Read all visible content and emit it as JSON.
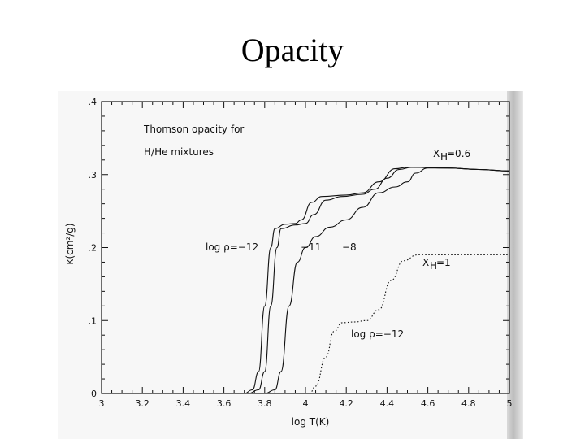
{
  "slide": {
    "title": "Opacity"
  },
  "chart_data": {
    "type": "line",
    "xlabel": "log T(K)",
    "ylabel": "κ(cm²/g)",
    "xlim": [
      3,
      5
    ],
    "ylim": [
      0,
      0.4
    ],
    "x_ticks": [
      "3",
      "3.2",
      "3.4",
      "3.6",
      "3.8",
      "4",
      "4.2",
      "4.4",
      "4.6",
      "4.8",
      "5"
    ],
    "y_ticks": [
      "0",
      ".1",
      ".2",
      ".3",
      ".4"
    ],
    "grid": false,
    "annotations": {
      "title_line1": "Thomson opacity for",
      "title_line2": "H/He mixtures",
      "xh_label": "X",
      "xh_sub": "H",
      "xh_value": "=0.6",
      "xhe_label": "X",
      "xhe_sub": "H",
      "xhe_value": "=1",
      "rho_m12": "log ρ=−12",
      "rho_m11": "−11",
      "rho_m8": "−8",
      "rho_m12_b": "log ρ=−12"
    },
    "series": [
      {
        "style": "solid",
        "points": [
          [
            3.7,
            0
          ],
          [
            3.74,
            0.005
          ],
          [
            3.77,
            0.03
          ],
          [
            3.8,
            0.12
          ],
          [
            3.83,
            0.2
          ],
          [
            3.85,
            0.226
          ],
          [
            3.9,
            0.232
          ],
          [
            3.95,
            0.233
          ],
          [
            3.98,
            0.238
          ],
          [
            4.03,
            0.262
          ],
          [
            4.08,
            0.27
          ],
          [
            4.2,
            0.272
          ],
          [
            4.28,
            0.275
          ],
          [
            4.36,
            0.29
          ],
          [
            4.44,
            0.308
          ],
          [
            4.5,
            0.31
          ],
          [
            4.7,
            0.309
          ],
          [
            4.85,
            0.307
          ],
          [
            5.0,
            0.305
          ]
        ]
      },
      {
        "style": "solid",
        "points": [
          [
            3.72,
            0
          ],
          [
            3.77,
            0.005
          ],
          [
            3.8,
            0.03
          ],
          [
            3.83,
            0.12
          ],
          [
            3.86,
            0.2
          ],
          [
            3.88,
            0.226
          ],
          [
            3.95,
            0.231
          ],
          [
            4.0,
            0.233
          ],
          [
            4.04,
            0.245
          ],
          [
            4.1,
            0.265
          ],
          [
            4.18,
            0.27
          ],
          [
            4.28,
            0.273
          ],
          [
            4.34,
            0.28
          ],
          [
            4.4,
            0.295
          ],
          [
            4.46,
            0.307
          ],
          [
            4.52,
            0.31
          ],
          [
            4.7,
            0.309
          ],
          [
            4.85,
            0.307
          ],
          [
            5.0,
            0.305
          ]
        ]
      },
      {
        "style": "solid",
        "points": [
          [
            3.8,
            0
          ],
          [
            3.85,
            0.005
          ],
          [
            3.88,
            0.03
          ],
          [
            3.92,
            0.12
          ],
          [
            3.96,
            0.18
          ],
          [
            4.0,
            0.2
          ],
          [
            4.05,
            0.215
          ],
          [
            4.12,
            0.228
          ],
          [
            4.2,
            0.238
          ],
          [
            4.28,
            0.255
          ],
          [
            4.36,
            0.275
          ],
          [
            4.44,
            0.283
          ],
          [
            4.5,
            0.29
          ],
          [
            4.54,
            0.302
          ],
          [
            4.6,
            0.309
          ],
          [
            4.7,
            0.309
          ],
          [
            4.85,
            0.307
          ],
          [
            5.0,
            0.305
          ]
        ]
      },
      {
        "style": "dotted",
        "points": [
          [
            4.02,
            0
          ],
          [
            4.05,
            0.01
          ],
          [
            4.1,
            0.05
          ],
          [
            4.14,
            0.085
          ],
          [
            4.18,
            0.097
          ],
          [
            4.24,
            0.098
          ],
          [
            4.3,
            0.1
          ],
          [
            4.36,
            0.115
          ],
          [
            4.42,
            0.155
          ],
          [
            4.48,
            0.182
          ],
          [
            4.55,
            0.19
          ],
          [
            4.7,
            0.19
          ],
          [
            4.85,
            0.19
          ],
          [
            5.0,
            0.19
          ]
        ]
      }
    ]
  }
}
